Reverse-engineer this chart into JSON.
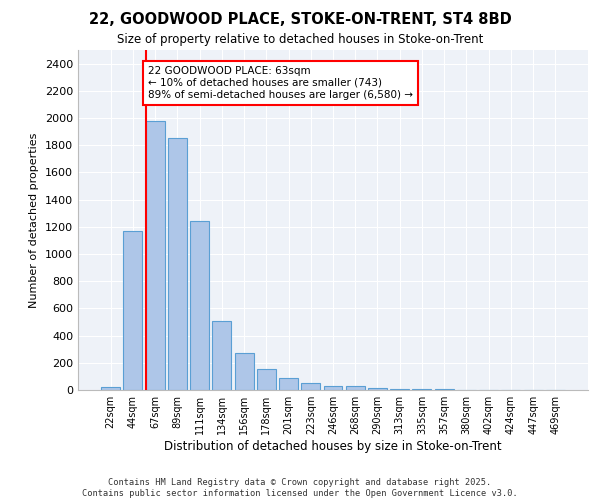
{
  "title_line1": "22, GOODWOOD PLACE, STOKE-ON-TRENT, ST4 8BD",
  "title_line2": "Size of property relative to detached houses in Stoke-on-Trent",
  "xlabel": "Distribution of detached houses by size in Stoke-on-Trent",
  "ylabel": "Number of detached properties",
  "categories": [
    "22sqm",
    "44sqm",
    "67sqm",
    "89sqm",
    "111sqm",
    "134sqm",
    "156sqm",
    "178sqm",
    "201sqm",
    "223sqm",
    "246sqm",
    "268sqm",
    "290sqm",
    "313sqm",
    "335sqm",
    "357sqm",
    "380sqm",
    "402sqm",
    "424sqm",
    "447sqm",
    "469sqm"
  ],
  "values": [
    20,
    1170,
    1980,
    1850,
    1240,
    510,
    275,
    155,
    85,
    50,
    30,
    28,
    15,
    8,
    5,
    4,
    3,
    2,
    2,
    1,
    1
  ],
  "bar_color": "#aec6e8",
  "bar_edge_color": "#5a9fd4",
  "vline_x_index": 1.575,
  "vline_color": "red",
  "annotation_text": "22 GOODWOOD PLACE: 63sqm\n← 10% of detached houses are smaller (743)\n89% of semi-detached houses are larger (6,580) →",
  "annotation_box_color": "white",
  "annotation_box_edge_color": "red",
  "ylim": [
    0,
    2500
  ],
  "yticks": [
    0,
    200,
    400,
    600,
    800,
    1000,
    1200,
    1400,
    1600,
    1800,
    2000,
    2200,
    2400
  ],
  "footer_text": "Contains HM Land Registry data © Crown copyright and database right 2025.\nContains public sector information licensed under the Open Government Licence v3.0.",
  "background_color": "#eef2f8",
  "grid_color": "white"
}
